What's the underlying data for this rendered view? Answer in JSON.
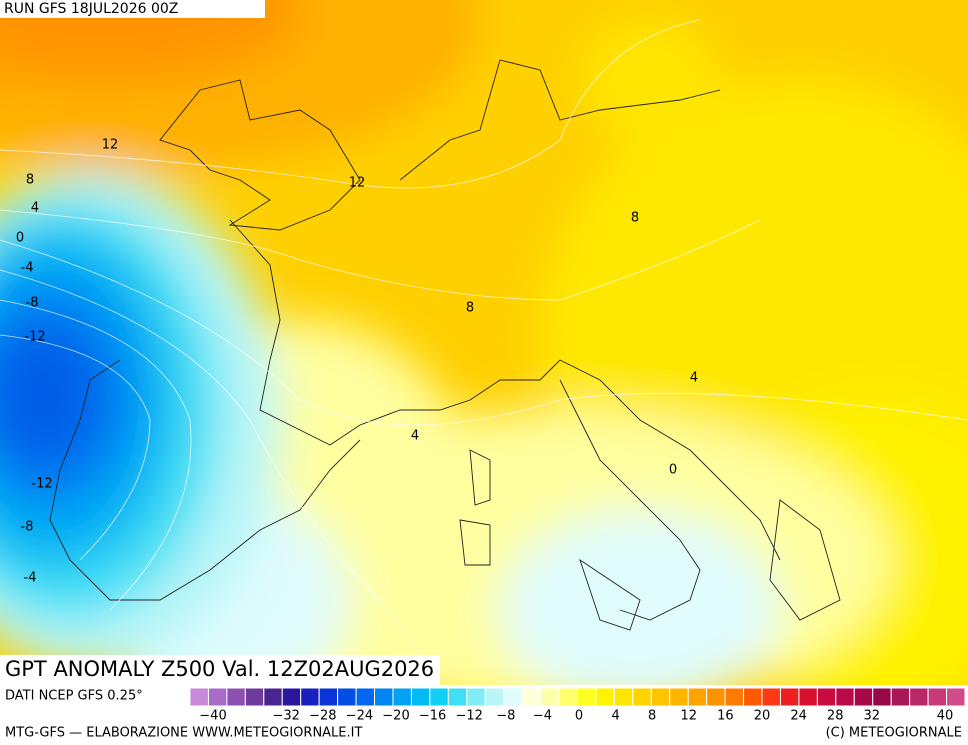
{
  "header": {
    "run": "RUN GFS 18JUL2026 00Z"
  },
  "map": {
    "title": "GPT ANOMALY Z500 Val. 12Z02AUG2026",
    "contour_labels": [
      "12",
      "8",
      "4",
      "0",
      "-4",
      "-8",
      "-12",
      "12",
      "8",
      "8",
      "4",
      "4",
      "0",
      "-12",
      "-8",
      "-4"
    ]
  },
  "legend": {
    "source": "DATI NCEP GFS 0.25°",
    "colors": [
      "#c88ad8",
      "#a86cc8",
      "#8c50b0",
      "#703a98",
      "#4a2490",
      "#2c16a0",
      "#1a20c0",
      "#0a34d4",
      "#004ee4",
      "#0068f0",
      "#0086f4",
      "#00a2f4",
      "#00bcf4",
      "#10d0f4",
      "#40e0f4",
      "#80ecf4",
      "#b8f6f8",
      "#e0fcfc",
      "#ffffd8",
      "#ffffa8",
      "#ffff70",
      "#ffff20",
      "#fff400",
      "#ffe400",
      "#ffd400",
      "#ffc400",
      "#ffb400",
      "#ffa400",
      "#ff9200",
      "#ff7a00",
      "#ff5a00",
      "#ff3a10",
      "#ec2020",
      "#d81030",
      "#c80c40",
      "#b80a48",
      "#a80848",
      "#980848",
      "#a81858",
      "#b82868",
      "#c83a7a",
      "#d04c8a"
    ],
    "labels": [
      "−40",
      "−32",
      "−28",
      "−24",
      "−20",
      "−16",
      "−12",
      "−8",
      "−4",
      "0",
      "4",
      "8",
      "12",
      "16",
      "20",
      "24",
      "28",
      "32",
      "40"
    ]
  },
  "footer": {
    "left": "MTG-GFS — ELABORAZIONE WWW.METEOGIORNALE.IT",
    "right": "(C) METEOGIORNALE"
  }
}
